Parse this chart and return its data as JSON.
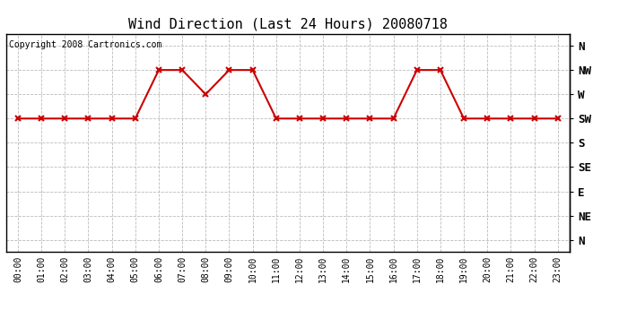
{
  "title": "Wind Direction (Last 24 Hours) 20080718",
  "copyright_text": "Copyright 2008 Cartronics.com",
  "x_labels": [
    "00:00",
    "01:00",
    "02:00",
    "03:00",
    "04:00",
    "05:00",
    "06:00",
    "07:00",
    "08:00",
    "09:00",
    "10:00",
    "11:00",
    "12:00",
    "13:00",
    "14:00",
    "15:00",
    "16:00",
    "17:00",
    "18:00",
    "19:00",
    "20:00",
    "21:00",
    "22:00",
    "23:00"
  ],
  "y_labels": [
    "N",
    "NW",
    "W",
    "SW",
    "S",
    "SE",
    "E",
    "NE",
    "N"
  ],
  "y_values": [
    8,
    7,
    6,
    5,
    4,
    3,
    2,
    1,
    0
  ],
  "wind_data": {
    "hours": [
      0,
      1,
      2,
      3,
      4,
      5,
      6,
      7,
      8,
      9,
      10,
      11,
      12,
      13,
      14,
      15,
      16,
      17,
      18,
      19,
      20,
      21,
      22,
      23
    ],
    "directions": [
      5,
      5,
      5,
      5,
      5,
      5,
      7,
      7,
      6,
      7,
      7,
      5,
      5,
      5,
      5,
      5,
      5,
      7,
      7,
      5,
      5,
      5,
      5,
      5
    ]
  },
  "line_color": "#cc0000",
  "marker": "x",
  "marker_size": 4,
  "marker_color": "#cc0000",
  "bg_color": "#ffffff",
  "grid_color": "#bbbbbb",
  "title_fontsize": 11,
  "copyright_fontsize": 7,
  "tick_fontsize": 7,
  "ylabel_fontsize": 9,
  "figsize": [
    6.9,
    3.75
  ],
  "dpi": 100
}
